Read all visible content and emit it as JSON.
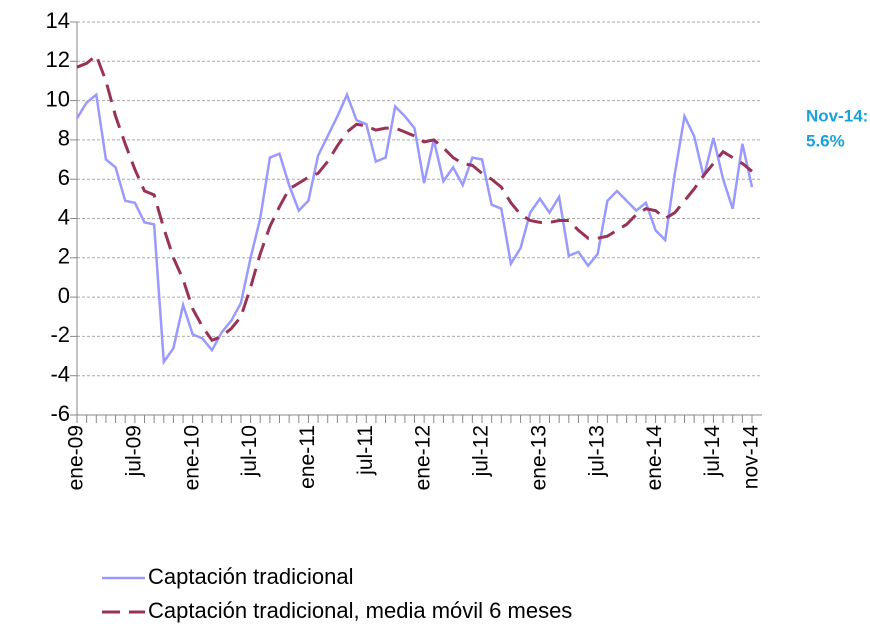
{
  "chart_data": {
    "type": "line",
    "categories": [
      "ene-09",
      null,
      null,
      null,
      null,
      null,
      "jul-09",
      null,
      null,
      null,
      null,
      null,
      "ene-10",
      null,
      null,
      null,
      null,
      null,
      "jul-10",
      null,
      null,
      null,
      null,
      null,
      "ene-11",
      null,
      null,
      null,
      null,
      null,
      "jul-11",
      null,
      null,
      null,
      null,
      null,
      "ene-12",
      null,
      null,
      null,
      null,
      null,
      "jul-12",
      null,
      null,
      null,
      null,
      null,
      "ene-13",
      null,
      null,
      null,
      null,
      null,
      "jul-13",
      null,
      null,
      null,
      null,
      null,
      "ene-14",
      null,
      null,
      null,
      null,
      null,
      "jul-14",
      null,
      null,
      null,
      "nov-14"
    ],
    "series": [
      {
        "name": "Captación tradicional",
        "color": "#9999ff",
        "dash": false,
        "values": [
          9.1,
          9.9,
          10.3,
          7.0,
          6.6,
          4.9,
          4.8,
          3.8,
          3.7,
          -3.3,
          -2.6,
          -0.4,
          -1.9,
          -2.1,
          -2.7,
          -1.8,
          -1.2,
          -0.3,
          2.0,
          4.0,
          7.1,
          7.3,
          5.7,
          4.4,
          4.9,
          7.2,
          8.2,
          9.2,
          10.3,
          9.0,
          8.8,
          6.9,
          7.1,
          9.7,
          9.2,
          8.6,
          5.8,
          8.0,
          5.9,
          6.6,
          5.7,
          7.1,
          7.0,
          4.7,
          4.5,
          1.7,
          2.5,
          4.3,
          5.0,
          4.3,
          5.1,
          2.1,
          2.3,
          1.6,
          2.2,
          4.9,
          5.4,
          4.9,
          4.4,
          4.8,
          3.4,
          2.9,
          6.3,
          9.2,
          8.2,
          6.1,
          8.1,
          6.0,
          4.5,
          7.8,
          5.6
        ]
      },
      {
        "name": "Captación tradicional, media móvil 6 meses",
        "color": "#993355",
        "dash": true,
        "values": [
          11.7,
          11.9,
          12.3,
          11.0,
          9.2,
          7.8,
          6.5,
          5.4,
          5.2,
          3.5,
          2.0,
          0.9,
          -0.6,
          -1.5,
          -2.2,
          -2.0,
          -1.6,
          -1.0,
          0.5,
          2.2,
          3.6,
          4.6,
          5.5,
          5.8,
          6.1,
          6.3,
          6.9,
          7.7,
          8.4,
          8.8,
          8.7,
          8.5,
          8.6,
          8.6,
          8.4,
          8.2,
          7.9,
          8.0,
          7.6,
          7.1,
          6.8,
          6.7,
          6.3,
          6.0,
          5.6,
          4.8,
          4.2,
          3.9,
          3.8,
          3.8,
          3.9,
          3.9,
          3.4,
          3.0,
          3.0,
          3.1,
          3.4,
          3.7,
          4.2,
          4.5,
          4.4,
          4.0,
          4.3,
          4.9,
          5.5,
          6.2,
          6.8,
          7.4,
          7.1,
          6.8,
          6.4
        ]
      }
    ],
    "ylim": [
      -6,
      14
    ],
    "yticks": [
      -6,
      -4,
      -2,
      0,
      2,
      4,
      6,
      8,
      10,
      12,
      14
    ],
    "grid": true,
    "annotation": [
      "Nov-14:",
      "5.6%"
    ],
    "annotation_color": "#1ba1d9"
  }
}
